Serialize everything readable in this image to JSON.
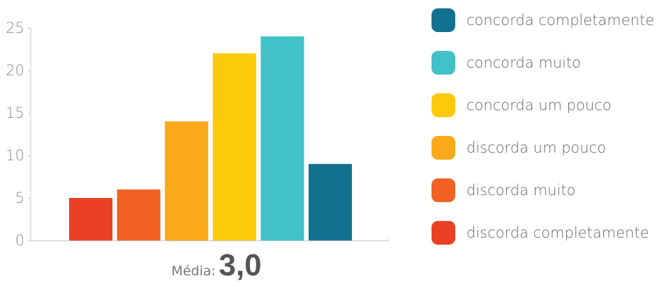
{
  "chart_data": {
    "type": "bar",
    "categories": [
      "discorda completamente",
      "discorda muito",
      "discorda um pouco",
      "concorda um pouco",
      "concorda muito",
      "concorda completamente"
    ],
    "values": [
      5,
      6,
      14,
      22,
      24,
      9
    ],
    "colors": [
      "#ea4125",
      "#f16124",
      "#f9a91a",
      "#fdca0b",
      "#42c1c9",
      "#137190"
    ],
    "yticks": [
      0,
      5,
      10,
      15,
      20,
      25
    ],
    "ylim": [
      0,
      25
    ],
    "grid": false,
    "legend_position": "right"
  },
  "legend": [
    {
      "label": "concorda completamente",
      "color": "#137190"
    },
    {
      "label": "concorda muito",
      "color": "#42c1c9"
    },
    {
      "label": "concorda um pouco",
      "color": "#fdca0b"
    },
    {
      "label": "discorda um pouco",
      "color": "#f9a91a"
    },
    {
      "label": "discorda muito",
      "color": "#f16124"
    },
    {
      "label": "discorda completamente",
      "color": "#ea4125"
    }
  ],
  "footer": {
    "label": "Média:",
    "value": "3,0"
  }
}
